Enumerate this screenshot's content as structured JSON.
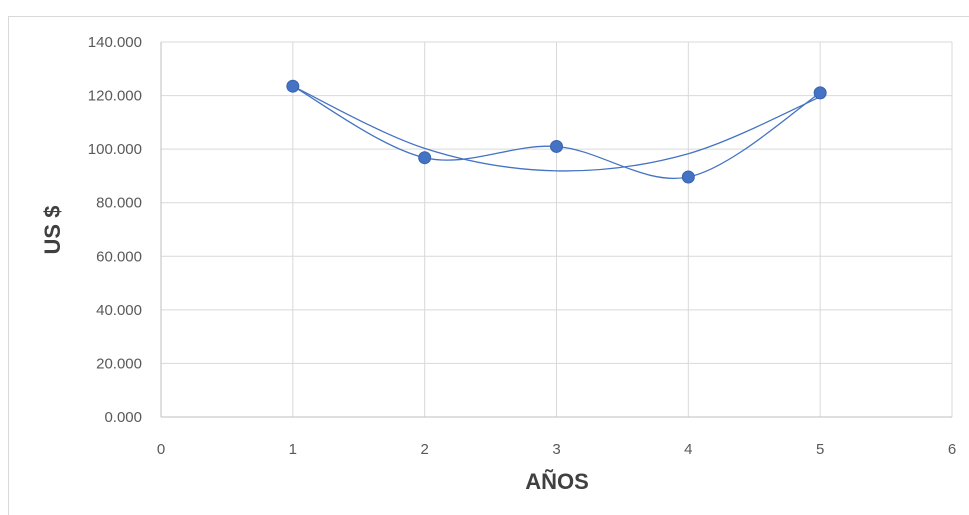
{
  "chart_data": {
    "type": "scatter",
    "xlabel": "AÑOS",
    "ylabel": "US $",
    "xlim": [
      0,
      6
    ],
    "ylim": [
      0,
      140
    ],
    "x_ticks": [
      "0",
      "1",
      "2",
      "3",
      "4",
      "5",
      "6"
    ],
    "y_ticks": [
      "0.000",
      "20.000",
      "40.000",
      "60.000",
      "80.000",
      "100.000",
      "120.000",
      "140.000"
    ],
    "grid": true,
    "series": [
      {
        "x": [
          1,
          2,
          3,
          4,
          5
        ],
        "y": [
          123.5,
          96.8,
          101.0,
          89.6,
          121.0
        ],
        "color": "#4472c4"
      }
    ],
    "trendline": {
      "type": "polynomial",
      "color": "#4472c4",
      "x": [
        1,
        2,
        3,
        4,
        5
      ],
      "y": [
        123.5,
        100.3,
        91.9,
        98.3,
        119.5
      ]
    }
  }
}
